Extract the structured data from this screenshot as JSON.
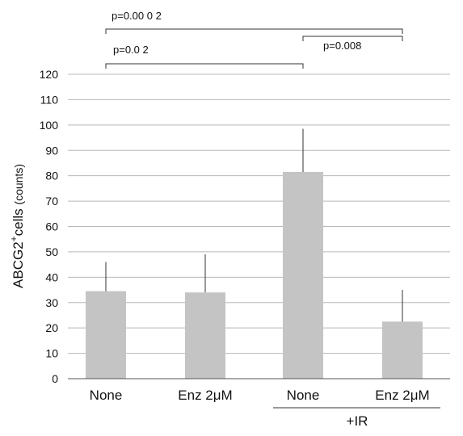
{
  "chart_data": {
    "type": "bar",
    "title": "",
    "ylabel_main": "ABCG2",
    "ylabel_sup": "+",
    "ylabel_rest": "cells ",
    "ylabel_unit": "(counts)",
    "ylim": [
      0,
      120
    ],
    "yticks": [
      "0",
      "10",
      "20",
      "30",
      "40",
      "50",
      "60",
      "70",
      "80",
      "90",
      "100",
      "110",
      "120"
    ],
    "grid": true,
    "categories": [
      "None",
      "Enz  2μM",
      "None",
      "Enz  2μM"
    ],
    "values": [
      34.5,
      34,
      81.5,
      22.5
    ],
    "errors": [
      11.5,
      15,
      17,
      12.5
    ],
    "bar_color": "#c4c4c4",
    "group_label": "+IR",
    "group_range": [
      2,
      3
    ],
    "significance": [
      {
        "label": "p=0.00 0 2",
        "from": 0,
        "to": 3
      },
      {
        "label": "p=0.0 2",
        "from": 0,
        "to": 2
      },
      {
        "label": "p=0.008",
        "from": 2,
        "to": 3
      }
    ]
  }
}
